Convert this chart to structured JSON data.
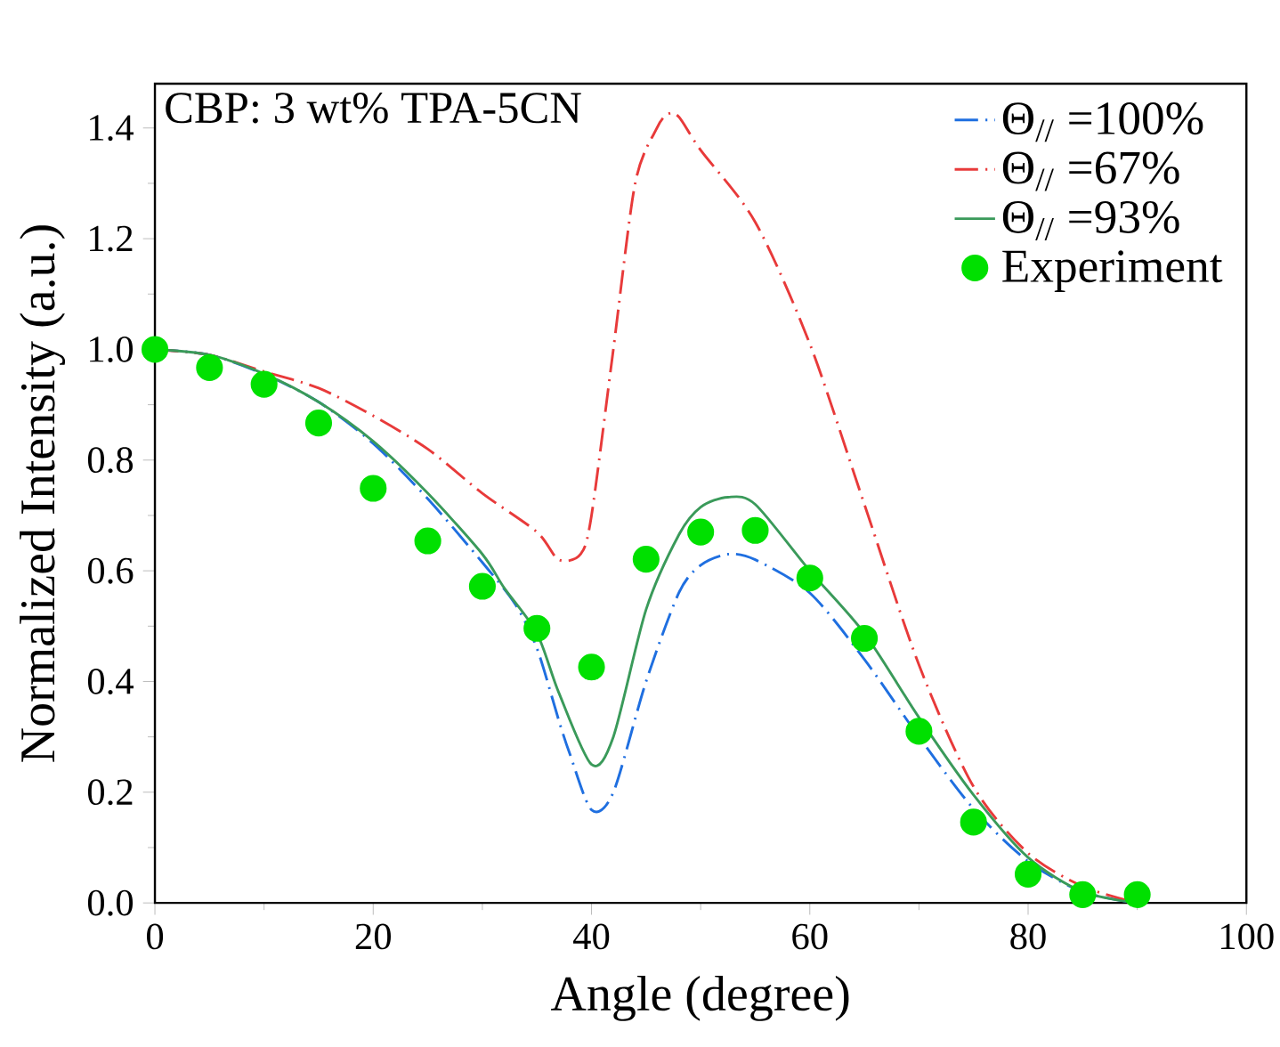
{
  "chart_data": {
    "type": "line",
    "xlabel": "Angle (degree)",
    "ylabel": "Normalized Intensity (a.u.)",
    "annotations": [
      "CBP: 3 wt% TPA-5CN"
    ],
    "xlim": [
      0,
      100
    ],
    "ylim": [
      0,
      1.48
    ],
    "xticks": [
      0,
      20,
      40,
      60,
      80,
      100
    ],
    "yticks": [
      {
        "value": 0,
        "label": "0.0"
      },
      {
        "value": 0.2,
        "label": "0.2"
      },
      {
        "value": 0.4,
        "label": "0.4"
      },
      {
        "value": 0.6,
        "label": "0.6"
      },
      {
        "value": 0.8,
        "label": "0.8"
      },
      {
        "value": 1.0,
        "label": "1.0"
      },
      {
        "value": 1.2,
        "label": "1.2"
      },
      {
        "value": 1.4,
        "label": "1.4"
      }
    ],
    "legend": "top right",
    "grid": false,
    "series": [
      {
        "name": "Θ$_{//}$ =100%",
        "color": "#1f6fe0",
        "line_style": "dashed",
        "marker": "none",
        "x": [
          0,
          5,
          10,
          15,
          20,
          25,
          30,
          33,
          35,
          37,
          38,
          40,
          42,
          45,
          48,
          50,
          52.5,
          55,
          60,
          65,
          70,
          75,
          80,
          85,
          90
        ],
        "values": [
          1.0,
          0.99,
          0.955,
          0.905,
          0.83,
          0.73,
          0.615,
          0.54,
          0.46,
          0.33,
          0.27,
          0.168,
          0.2,
          0.4,
          0.56,
          0.61,
          0.63,
          0.62,
          0.56,
          0.44,
          0.3,
          0.17,
          0.075,
          0.02,
          0.0
        ]
      },
      {
        "name": "Θ$_{//}$ =67%",
        "color": "#e83a3a",
        "line_style": "dashed",
        "marker": "none",
        "x": [
          0,
          5,
          10,
          15,
          20,
          25,
          30,
          35,
          37,
          39,
          40,
          42,
          44,
          46,
          47,
          48,
          50,
          55,
          60,
          65,
          70,
          75,
          80,
          85,
          90
        ],
        "values": [
          1.0,
          0.99,
          0.96,
          0.93,
          0.88,
          0.82,
          0.74,
          0.67,
          0.62,
          0.63,
          0.7,
          1.0,
          1.3,
          1.4,
          1.425,
          1.42,
          1.36,
          1.23,
          1.01,
          0.72,
          0.43,
          0.21,
          0.09,
          0.03,
          0.0
        ]
      },
      {
        "name": "Θ$_{//}$ =93%",
        "color": "#3a9a5a",
        "line_style": "solid",
        "marker": "none",
        "x": [
          0,
          5,
          10,
          15,
          20,
          25,
          30,
          32,
          35,
          37,
          40,
          42,
          45,
          48,
          50,
          52.5,
          55,
          60,
          65,
          70,
          75,
          80,
          85,
          90
        ],
        "values": [
          1.0,
          0.99,
          0.956,
          0.905,
          0.834,
          0.74,
          0.63,
          0.569,
          0.487,
          0.38,
          0.25,
          0.3,
          0.53,
          0.665,
          0.715,
          0.733,
          0.72,
          0.6,
          0.487,
          0.335,
          0.195,
          0.082,
          0.02,
          0.0
        ]
      },
      {
        "name": "Experiment",
        "type": "scatter",
        "color": "#00e000",
        "marker": "circle",
        "x": [
          0,
          5,
          10,
          15,
          20,
          25,
          30,
          35,
          40,
          45,
          50,
          55,
          60,
          65,
          70,
          75,
          80,
          85,
          90
        ],
        "values": [
          1.0,
          0.967,
          0.937,
          0.867,
          0.749,
          0.654,
          0.572,
          0.496,
          0.426,
          0.621,
          0.67,
          0.673,
          0.587,
          0.478,
          0.31,
          0.146,
          0.052,
          0.015,
          0.015
        ]
      }
    ]
  }
}
